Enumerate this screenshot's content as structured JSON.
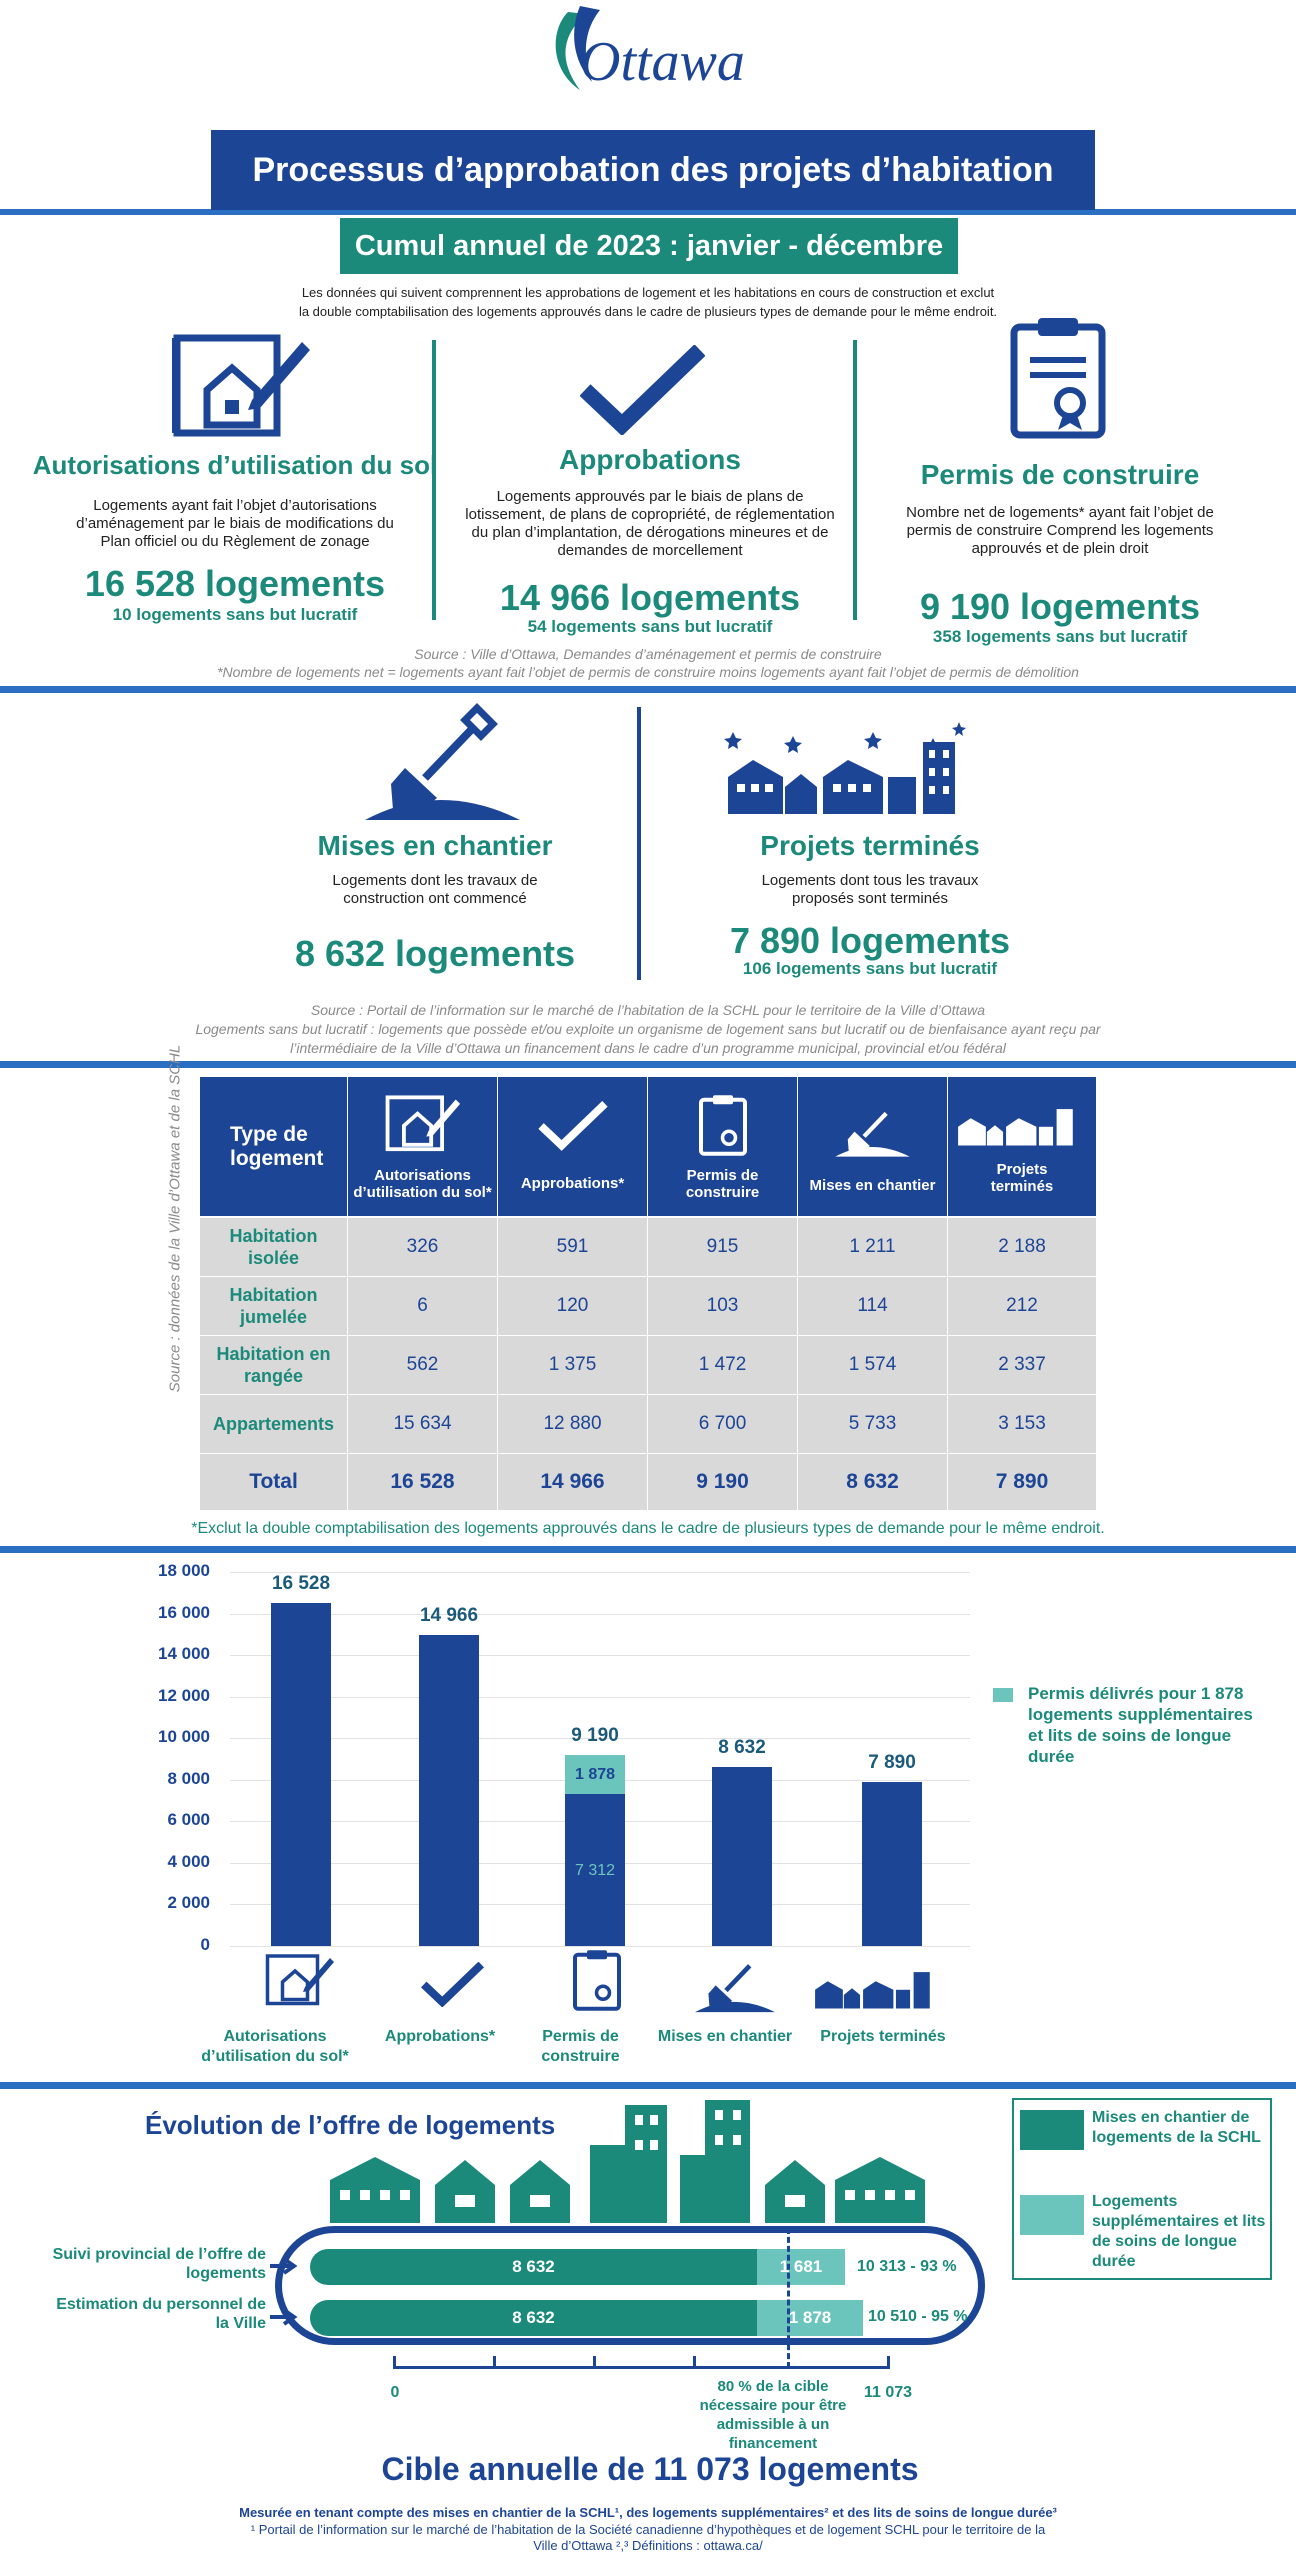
{
  "header": {
    "logo_text": "Ottawa",
    "title": "Processus d’approbation des projets d’habitation",
    "period": "Cumul annuel de 2023 : janvier - décembre",
    "intro_line1": "Les données qui suivent comprennent les approbations de logement et les habitations en cours de construction et exclut",
    "intro_line2": "la double comptabilisation des logements approuvés dans le cadre de plusieurs types de demande pour le même endroit."
  },
  "stages": {
    "landuse": {
      "title": "Autorisations d’utilisation du sol",
      "desc": "Logements ayant fait l’objet d’autorisations d’aménagement par le biais de modifications du Plan officiel ou du Règlement de zonage",
      "total": "16 528 logements",
      "nonprofit": "10 logements sans but lucratif"
    },
    "approvals": {
      "title": "Approbations",
      "desc": "Logements approuvés par le biais de plans de lotissement, de plans de copropriété, de réglementation du plan d’implantation, de dérogations mineures et de demandes de morcellement",
      "total": "14 966 logements",
      "nonprofit": "54 logements sans but lucratif"
    },
    "permits": {
      "title": "Permis de construire",
      "desc": "Nombre net de logements* ayant fait l’objet de permis de construire Comprend les logements approuvés et de plein droit",
      "total": "9 190 logements",
      "nonprofit": "358 logements sans but lucratif"
    },
    "source1": "Source : Ville d’Ottawa, Demandes d’aménagement et permis de construire",
    "source2": "*Nombre de logements net = logements ayant fait l’objet de permis de construire moins logements ayant fait l’objet de permis de démolition",
    "starts": {
      "title": "Mises en chantier",
      "desc": "Logements dont les travaux de construction ont commencé",
      "total": "8 632 logements"
    },
    "completed": {
      "title": "Projets terminés",
      "desc": "Logements dont tous les travaux proposés sont terminés",
      "total": "7 890 logements",
      "nonprofit": "106 logements sans but lucratif"
    },
    "source3": "Source : Portail de l’information sur le marché de l’habitation de la SCHL pour le territoire de la Ville d’Ottawa",
    "source4": "Logements sans but lucratif : logements que possède et/ou exploite un organisme de logement sans but lucratif ou de bienfaisance ayant reçu par",
    "source5": "l’intermédiaire de la Ville d’Ottawa un financement dans le cadre d’un programme municipal, provincial et/ou fédéral"
  },
  "table": {
    "side_source": "Source : données de la Ville d’Ottawa et de la SCHL",
    "headers": [
      "Type de logement",
      "Autorisations d’utilisation du sol*",
      "Approbations*",
      "Permis de construire",
      "Mises en chantier",
      "Projets terminés"
    ],
    "rows": [
      {
        "label": "Habitation isolée",
        "values": [
          "326",
          "591",
          "915",
          "1 211",
          "2 188"
        ]
      },
      {
        "label": "Habitation jumelée",
        "values": [
          "6",
          "120",
          "103",
          "114",
          "212"
        ]
      },
      {
        "label": "Habitation en rangée",
        "values": [
          "562",
          "1 375",
          "1 472",
          "1 574",
          "2 337"
        ]
      },
      {
        "label": "Appartements",
        "values": [
          "15 634",
          "12 880",
          "6 700",
          "5 733",
          "3 153"
        ]
      },
      {
        "label": "Total",
        "values": [
          "16 528",
          "14 966",
          "9 190",
          "8 632",
          "7 890"
        ]
      }
    ],
    "footnote": "*Exclut la double comptabilisation des logements approuvés dans le cadre de plusieurs types de demande pour le même endroit."
  },
  "chart_data": {
    "type": "bar",
    "categories": [
      "Autorisations d’utilisation du sol*",
      "Approbations*",
      "Permis de construire",
      "Mises en chantier",
      "Projets terminés"
    ],
    "values": [
      16528,
      14966,
      9190,
      8632,
      7890
    ],
    "value_labels": [
      "16 528",
      "14 966",
      "9 190",
      "8 632",
      "7 890"
    ],
    "permit_split": {
      "base": 7312,
      "base_label": "7 312",
      "extra": 1878,
      "extra_label": "1 878"
    },
    "yticks": [
      "18 000",
      "16 000",
      "14 000",
      "12 000",
      "10 000",
      "8 000",
      "6 000",
      "4 000",
      "2 000",
      "0"
    ],
    "ylim": [
      0,
      18000
    ],
    "legend": "Permis délivrés pour 1 878 logements supplémentaires et lits de soins de longue durée",
    "colors": {
      "main": "#1d4596",
      "extra": "#6cc5bd"
    }
  },
  "supply": {
    "title": "Évolution de l’offre de logements",
    "row1_label": "Suivi provincial de l’offre de logements",
    "row1_starts": "8 632",
    "row1_extra": "1 681",
    "row1_result": "10 313 - 93 %",
    "row2_label": "Estimation du personnel de la Ville",
    "row2_starts": "8 632",
    "row2_extra": "1 878",
    "row2_result": "10 510 - 95 %",
    "axis_zero": "0",
    "axis_target": "11 073",
    "threshold_note": "80 % de la cible nécessaire pour être admissible à un financement",
    "legend_starts": "Mises en chantier de logements de la SCHL",
    "legend_extra": "Logements supplémentaires et lits de soins de longue durée",
    "target_title": "Cible annuelle de 11 073 logements",
    "footer1": "Mesurée en tenant compte des mises en chantier de la SCHL¹, des logements supplémentaires² et des lits de soins de longue durée³",
    "footer2": "¹ Portail de l’information sur le marché de l’habitation de la Société canadienne d’hypothèques et de logement SCHL pour le territoire de la",
    "footer3": "Ville d’Ottawa ²,³ Définitions : ottawa.ca/"
  }
}
